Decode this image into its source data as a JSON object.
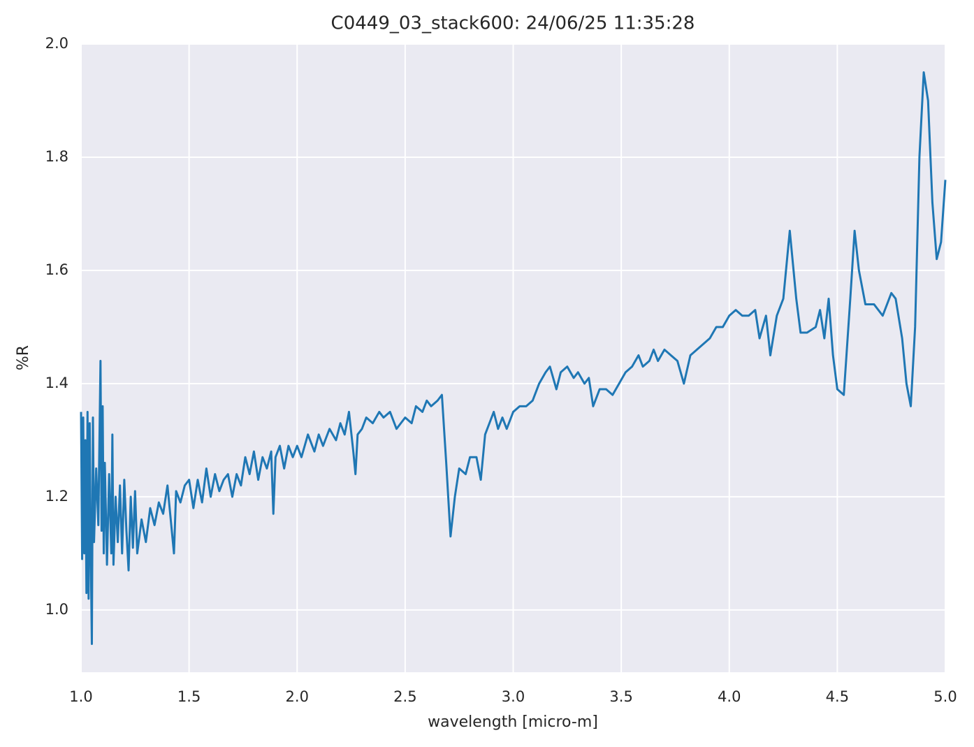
{
  "chart_data": {
    "type": "line",
    "title": "C0449_03_stack600:  24/06/25 11:35:28",
    "xlabel": "wavelength [micro-m]",
    "ylabel": "%R",
    "xlim": [
      1.0,
      5.0
    ],
    "ylim": [
      0.89,
      2.0
    ],
    "xticks": [
      {
        "value": 1.0,
        "label": "1.0"
      },
      1.5,
      {
        "value": 2.0,
        "label": "2.0"
      },
      2.5,
      {
        "value": 3.0,
        "label": "3.0"
      },
      3.5,
      {
        "value": 4.0,
        "label": "4.0"
      },
      4.5,
      {
        "value": 5.0,
        "label": "5.0"
      }
    ],
    "yticks": [
      {
        "value": 1.0,
        "label": "1.0"
      },
      1.2,
      1.4,
      1.6,
      1.8,
      {
        "value": 2.0,
        "label": "2.0"
      }
    ],
    "grid": true,
    "x": [
      1.0,
      1.005,
      1.01,
      1.015,
      1.02,
      1.025,
      1.03,
      1.035,
      1.04,
      1.045,
      1.05,
      1.055,
      1.06,
      1.07,
      1.08,
      1.09,
      1.095,
      1.1,
      1.105,
      1.11,
      1.12,
      1.13,
      1.14,
      1.145,
      1.15,
      1.16,
      1.17,
      1.18,
      1.19,
      1.2,
      1.21,
      1.22,
      1.23,
      1.24,
      1.25,
      1.26,
      1.28,
      1.3,
      1.32,
      1.34,
      1.36,
      1.38,
      1.4,
      1.42,
      1.43,
      1.44,
      1.46,
      1.48,
      1.5,
      1.52,
      1.54,
      1.56,
      1.58,
      1.6,
      1.62,
      1.64,
      1.66,
      1.68,
      1.7,
      1.72,
      1.74,
      1.76,
      1.78,
      1.8,
      1.82,
      1.84,
      1.86,
      1.88,
      1.89,
      1.9,
      1.92,
      1.94,
      1.96,
      1.98,
      2.0,
      2.02,
      2.05,
      2.08,
      2.1,
      2.12,
      2.15,
      2.18,
      2.2,
      2.22,
      2.24,
      2.26,
      2.27,
      2.28,
      2.3,
      2.32,
      2.35,
      2.38,
      2.4,
      2.43,
      2.46,
      2.48,
      2.5,
      2.53,
      2.55,
      2.58,
      2.6,
      2.62,
      2.65,
      2.67,
      2.69,
      2.71,
      2.73,
      2.75,
      2.78,
      2.8,
      2.83,
      2.85,
      2.87,
      2.89,
      2.91,
      2.93,
      2.95,
      2.97,
      3.0,
      3.03,
      3.06,
      3.09,
      3.12,
      3.15,
      3.17,
      3.2,
      3.22,
      3.25,
      3.28,
      3.3,
      3.33,
      3.35,
      3.37,
      3.4,
      3.43,
      3.46,
      3.49,
      3.52,
      3.55,
      3.58,
      3.6,
      3.63,
      3.65,
      3.67,
      3.7,
      3.73,
      3.76,
      3.79,
      3.82,
      3.85,
      3.88,
      3.91,
      3.94,
      3.97,
      4.0,
      4.03,
      4.06,
      4.09,
      4.12,
      4.14,
      4.17,
      4.19,
      4.22,
      4.25,
      4.28,
      4.31,
      4.33,
      4.36,
      4.4,
      4.42,
      4.44,
      4.46,
      4.48,
      4.5,
      4.53,
      4.56,
      4.58,
      4.6,
      4.63,
      4.67,
      4.71,
      4.75,
      4.77,
      4.8,
      4.82,
      4.84,
      4.86,
      4.88,
      4.9,
      4.92,
      4.94,
      4.96,
      4.98,
      5.0
    ],
    "series": [
      {
        "color": "#1f77b4",
        "values": [
          1.35,
          1.09,
          1.34,
          1.1,
          1.3,
          1.03,
          1.35,
          1.02,
          1.33,
          1.1,
          0.94,
          1.34,
          1.12,
          1.25,
          1.15,
          1.44,
          1.14,
          1.36,
          1.1,
          1.26,
          1.08,
          1.24,
          1.1,
          1.31,
          1.08,
          1.2,
          1.12,
          1.22,
          1.1,
          1.23,
          1.14,
          1.07,
          1.2,
          1.11,
          1.21,
          1.1,
          1.16,
          1.12,
          1.18,
          1.15,
          1.19,
          1.17,
          1.22,
          1.14,
          1.1,
          1.21,
          1.19,
          1.22,
          1.23,
          1.18,
          1.23,
          1.19,
          1.25,
          1.2,
          1.24,
          1.21,
          1.23,
          1.24,
          1.2,
          1.24,
          1.22,
          1.27,
          1.24,
          1.28,
          1.23,
          1.27,
          1.25,
          1.28,
          1.17,
          1.27,
          1.29,
          1.25,
          1.29,
          1.27,
          1.29,
          1.27,
          1.31,
          1.28,
          1.31,
          1.29,
          1.32,
          1.3,
          1.33,
          1.31,
          1.35,
          1.28,
          1.24,
          1.31,
          1.32,
          1.34,
          1.33,
          1.35,
          1.34,
          1.35,
          1.32,
          1.33,
          1.34,
          1.33,
          1.36,
          1.35,
          1.37,
          1.36,
          1.37,
          1.38,
          1.26,
          1.13,
          1.2,
          1.25,
          1.24,
          1.27,
          1.27,
          1.23,
          1.31,
          1.33,
          1.35,
          1.32,
          1.34,
          1.32,
          1.35,
          1.36,
          1.36,
          1.37,
          1.4,
          1.42,
          1.43,
          1.39,
          1.42,
          1.43,
          1.41,
          1.42,
          1.4,
          1.41,
          1.36,
          1.39,
          1.39,
          1.38,
          1.4,
          1.42,
          1.43,
          1.45,
          1.43,
          1.44,
          1.46,
          1.44,
          1.46,
          1.45,
          1.44,
          1.4,
          1.45,
          1.46,
          1.47,
          1.48,
          1.5,
          1.5,
          1.52,
          1.53,
          1.52,
          1.52,
          1.53,
          1.48,
          1.52,
          1.45,
          1.52,
          1.55,
          1.67,
          1.55,
          1.49,
          1.49,
          1.5,
          1.53,
          1.48,
          1.55,
          1.45,
          1.39,
          1.38,
          1.55,
          1.67,
          1.6,
          1.54,
          1.54,
          1.52,
          1.56,
          1.55,
          1.48,
          1.4,
          1.36,
          1.5,
          1.8,
          1.95,
          1.9,
          1.72,
          1.62,
          1.65,
          1.76
        ]
      }
    ]
  }
}
